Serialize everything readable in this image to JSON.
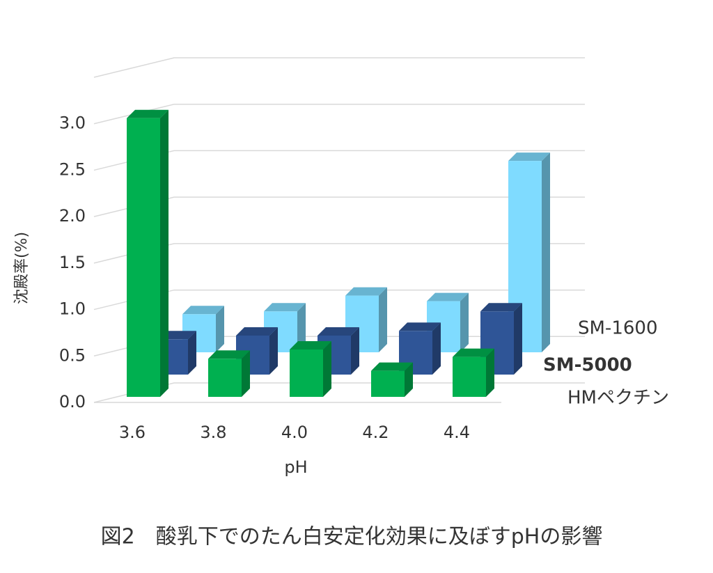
{
  "chart_data": {
    "type": "bar3d",
    "title": "図2　酸乳下でのたん白安定化効果に及ぼすpHの影響",
    "x_label": "pH",
    "y_label": "沈殿率(%)",
    "categories": [
      "3.6",
      "3.8",
      "4.0",
      "4.2",
      "4.4"
    ],
    "series": [
      {
        "name": "HMペクチン",
        "color": "#00b050",
        "values": [
          3.0,
          0.41,
          0.51,
          0.28,
          0.43
        ]
      },
      {
        "name": "SM-5000",
        "color": "#2f5597",
        "values": [
          0.38,
          0.42,
          0.42,
          0.47,
          0.68
        ]
      },
      {
        "name": "SM-1600",
        "color": "#7fdbff",
        "values": [
          0.41,
          0.44,
          0.61,
          0.55,
          2.06
        ]
      }
    ],
    "ylim": [
      0,
      3.5
    ],
    "yticks": [
      {
        "value": 0,
        "label": "0.0"
      },
      {
        "value": 0.5,
        "label": "0.5"
      },
      {
        "value": 1,
        "label": "1.0"
      },
      {
        "value": 1.5,
        "label": "1.5"
      },
      {
        "value": 2,
        "label": "2.0"
      },
      {
        "value": 2.5,
        "label": "2.5"
      },
      {
        "value": 3,
        "label": "3.0"
      }
    ],
    "grid": true
  }
}
